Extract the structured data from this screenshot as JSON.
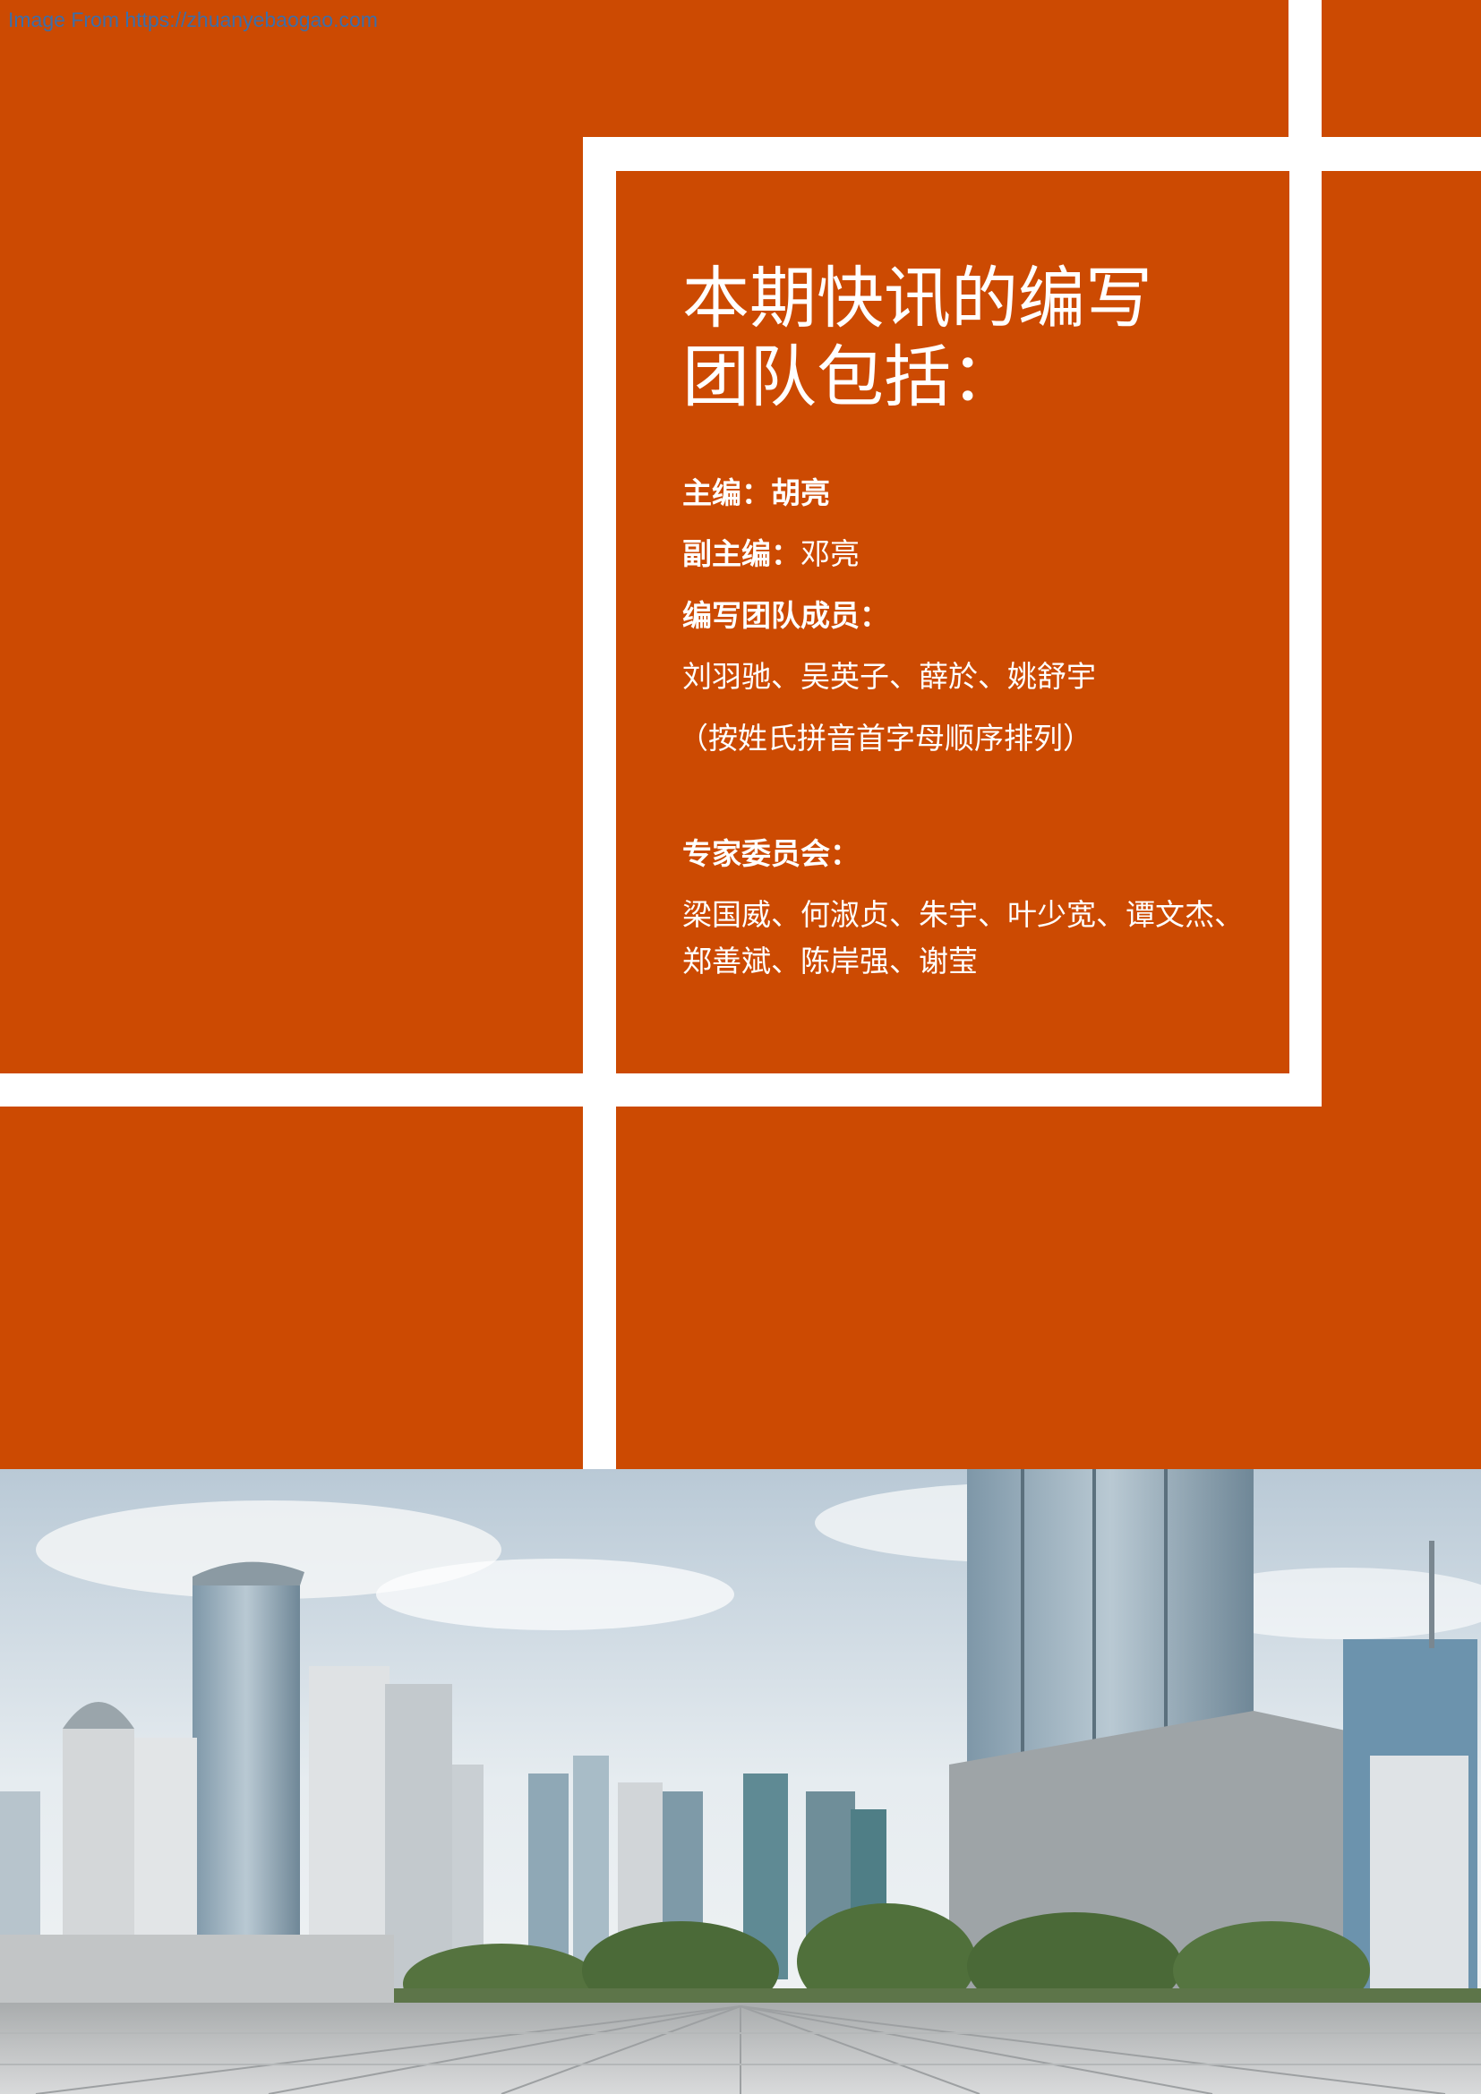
{
  "watermark": "Image From https://zhuanyebaogao.com",
  "colors": {
    "accent": "#cc4a02",
    "gap": "#ffffff",
    "watermark": "#3d6ea8"
  },
  "panel": {
    "title_line1": "本期快讯的编写",
    "title_line2": "团队包括：",
    "editor_label": "主编：",
    "editor_name": "胡亮",
    "deputy_label": "副主编：",
    "deputy_name": "邓亮",
    "team_label": "编写团队成员：",
    "team_members": "刘羽驰、吴英子、薛於、姚舒宇",
    "team_note": "（按姓氏拼音首字母顺序排列）",
    "expert_label": "专家委员会：",
    "experts_line1": "梁国威、何淑贞、朱宇、叶少宽、谭文杰、",
    "experts_line2": "郑善斌、陈岸强、谢莹"
  },
  "photo": {
    "subject": "city-skyline-plaza"
  }
}
